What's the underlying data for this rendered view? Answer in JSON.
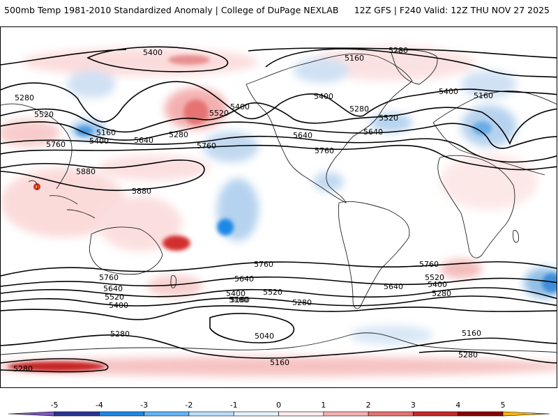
{
  "header": {
    "title_left": "500mb Temp 1981-2010 Standardized Anomaly | College of DuPage NEXLAB",
    "title_right": "12Z GFS | F240 Valid: 12Z THU NOV 27 2025"
  },
  "contours": [
    {
      "label": "5400"
    },
    {
      "label": "5160"
    },
    {
      "label": "5280"
    },
    {
      "label": "5280"
    },
    {
      "label": "5520"
    },
    {
      "label": "5160"
    },
    {
      "label": "5400"
    },
    {
      "label": "5640"
    },
    {
      "label": "5760"
    },
    {
      "label": "5520"
    },
    {
      "label": "5280"
    },
    {
      "label": "5400"
    },
    {
      "label": "5640"
    },
    {
      "label": "5760"
    },
    {
      "label": "5880"
    },
    {
      "label": "5880"
    },
    {
      "label": "5760"
    },
    {
      "label": "5640"
    },
    {
      "label": "5520"
    },
    {
      "label": "5400"
    },
    {
      "label": "5280"
    },
    {
      "label": "5160"
    },
    {
      "label": "5040"
    },
    {
      "label": "5160"
    },
    {
      "label": "5280"
    },
    {
      "label": "5280"
    },
    {
      "label": "5160"
    },
    {
      "label": "5280"
    },
    {
      "label": "5400"
    },
    {
      "label": "5520"
    },
    {
      "label": "5640"
    },
    {
      "label": "5760"
    },
    {
      "label": "5760"
    },
    {
      "label": "5640"
    },
    {
      "label": "5520"
    },
    {
      "label": "5400"
    },
    {
      "label": "5280"
    },
    {
      "label": "5160"
    },
    {
      "label": "5400"
    },
    {
      "label": "5280"
    },
    {
      "label": "5520"
    },
    {
      "label": "5640"
    },
    {
      "label": "5760"
    },
    {
      "label": "5400"
    },
    {
      "label": "5160"
    }
  ],
  "colorbar": {
    "ticks": [
      "-5",
      "-4",
      "-3",
      "-2",
      "-1",
      "0",
      "1",
      "2",
      "3",
      "4",
      "5"
    ],
    "colors": [
      "#7e57c2",
      "#283593",
      "#1e88e5",
      "#64b5f6",
      "#bbdefb",
      "#e3f2fd",
      "#ffebee",
      "#f4b0b0",
      "#e57373",
      "#c62828",
      "#8b0000",
      "#f9b400"
    ]
  }
}
